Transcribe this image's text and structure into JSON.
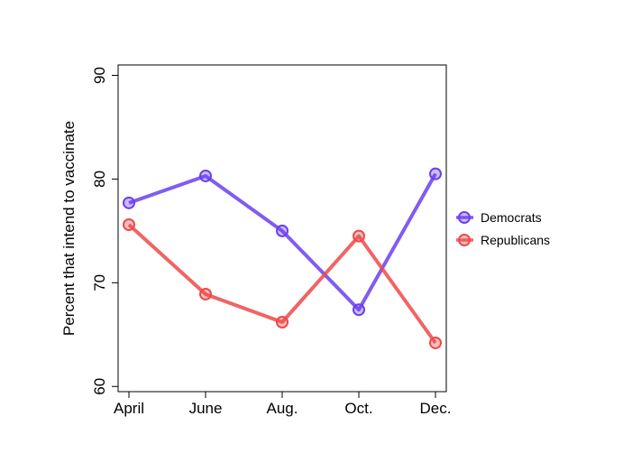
{
  "chart_data": {
    "type": "line",
    "categories": [
      "April",
      "June",
      "Aug.",
      "Oct.",
      "Dec."
    ],
    "ylabel": "Percent that intend to vaccinate",
    "xlabel": "",
    "ylim": [
      59.5,
      91
    ],
    "yticks": [
      60,
      70,
      80,
      90
    ],
    "grid": false,
    "legend_position": "right",
    "series": [
      {
        "name": "Democrats",
        "color": "#6a3ff0",
        "values": [
          77.7,
          80.3,
          75.0,
          67.4,
          80.5
        ]
      },
      {
        "name": "Republicans",
        "color": "#ee4949",
        "values": [
          75.6,
          68.9,
          66.2,
          74.5,
          64.2
        ]
      }
    ]
  }
}
